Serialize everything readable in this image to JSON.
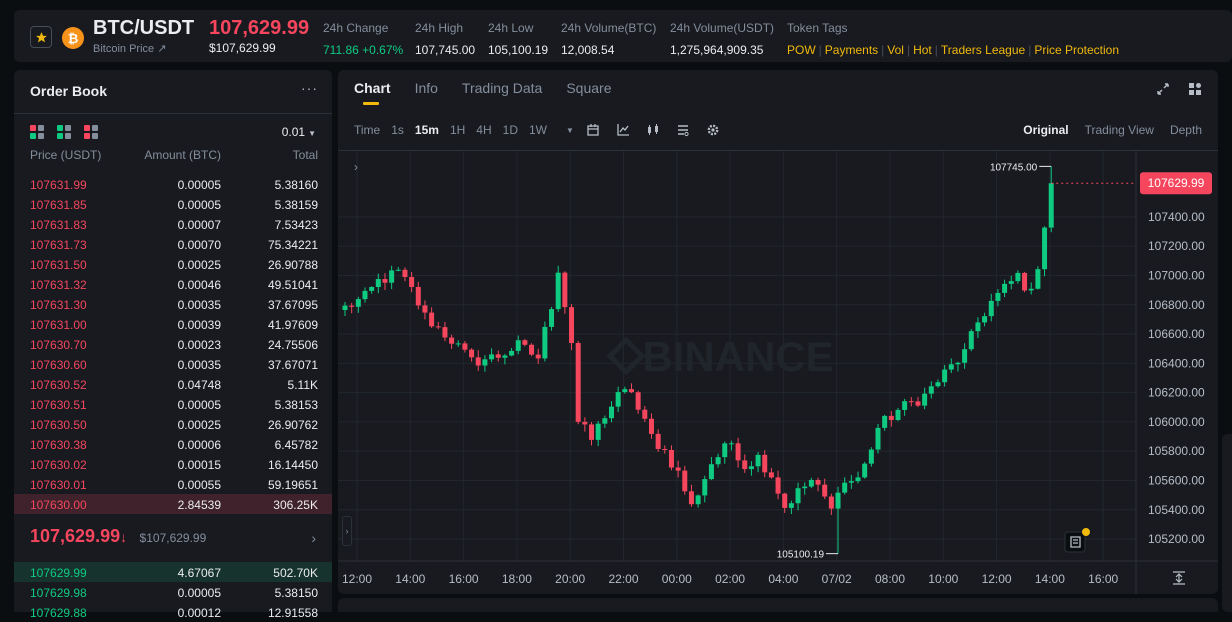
{
  "ticker": {
    "symbol": "BTC/USDT",
    "coin_symbol": "₿",
    "subtitle": "Bitcoin Price ↗",
    "last_price": "107,629.99",
    "last_price_usd": "$107,629.99",
    "stats": [
      {
        "label": "24h Change",
        "value": "711.86 +0.67%"
      },
      {
        "label": "24h High",
        "value": "107,745.00"
      },
      {
        "label": "24h Low",
        "value": "105,100.19"
      },
      {
        "label": "24h Volume(BTC)",
        "value": "12,008.54"
      },
      {
        "label": "24h Volume(USDT)",
        "value": "1,275,964,909.35"
      }
    ],
    "tags_label": "Token Tags",
    "tags": [
      "POW",
      "Payments",
      "Vol",
      "Hot",
      "Traders League",
      "Price Protection"
    ],
    "colors": {
      "up": "#0ecb81",
      "down": "#f6465d",
      "accent": "#f0b90b"
    }
  },
  "orderbook": {
    "title": "Order Book",
    "more": "···",
    "tick_size": "0.01",
    "headers": {
      "price": "Price (USDT)",
      "amount": "Amount (BTC)",
      "total": "Total"
    },
    "asks": [
      {
        "price": "107631.99",
        "amount": "0.00005",
        "total": "5.38160"
      },
      {
        "price": "107631.85",
        "amount": "0.00005",
        "total": "5.38159"
      },
      {
        "price": "107631.83",
        "amount": "0.00007",
        "total": "7.53423"
      },
      {
        "price": "107631.73",
        "amount": "0.00070",
        "total": "75.34221"
      },
      {
        "price": "107631.50",
        "amount": "0.00025",
        "total": "26.90788"
      },
      {
        "price": "107631.32",
        "amount": "0.00046",
        "total": "49.51041"
      },
      {
        "price": "107631.30",
        "amount": "0.00035",
        "total": "37.67095"
      },
      {
        "price": "107631.00",
        "amount": "0.00039",
        "total": "41.97609"
      },
      {
        "price": "107630.70",
        "amount": "0.00023",
        "total": "24.75506"
      },
      {
        "price": "107630.60",
        "amount": "0.00035",
        "total": "37.67071"
      },
      {
        "price": "107630.52",
        "amount": "0.04748",
        "total": "5.11K"
      },
      {
        "price": "107630.51",
        "amount": "0.00005",
        "total": "5.38153"
      },
      {
        "price": "107630.50",
        "amount": "0.00025",
        "total": "26.90762"
      },
      {
        "price": "107630.38",
        "amount": "0.00006",
        "total": "6.45782"
      },
      {
        "price": "107630.02",
        "amount": "0.00015",
        "total": "16.14450"
      },
      {
        "price": "107630.01",
        "amount": "0.00055",
        "total": "59.19651"
      },
      {
        "price": "107630.00",
        "amount": "2.84539",
        "total": "306.25K"
      }
    ],
    "mid_price": "107,629.99",
    "mid_arrow": "↓",
    "mid_usd": "$107,629.99",
    "mid_go": "›",
    "bids": [
      {
        "price": "107629.99",
        "amount": "4.67067",
        "total": "502.70K"
      },
      {
        "price": "107629.98",
        "amount": "0.00005",
        "total": "5.38150"
      },
      {
        "price": "107629.88",
        "amount": "0.00012",
        "total": "12.91558"
      }
    ]
  },
  "chart_panel": {
    "tabs": [
      "Chart",
      "Info",
      "Trading Data",
      "Square"
    ],
    "active_tab": "Chart",
    "timeframes": [
      "Time",
      "1s",
      "15m",
      "1H",
      "4H",
      "1D",
      "1W"
    ],
    "active_timeframe": "15m",
    "views": [
      "Original",
      "Trading View",
      "Depth"
    ],
    "active_view": "Original",
    "watermark": "BINANCE"
  },
  "chart_data": {
    "type": "candlestick",
    "title": "",
    "interval": "15m",
    "y_ticks": [
      105200,
      105400,
      105600,
      105800,
      106000,
      106200,
      106400,
      106600,
      106800,
      107000,
      107200,
      107400
    ],
    "ylim": [
      105050,
      107850
    ],
    "x_ticks": [
      "12:00",
      "14:00",
      "16:00",
      "18:00",
      "20:00",
      "22:00",
      "00:00",
      "02:00",
      "04:00",
      "07/02",
      "08:00",
      "10:00",
      "12:00",
      "14:00",
      "16:00"
    ],
    "last_price_label": "107629.99",
    "high_label": "107745.00",
    "low_label": "105100.19",
    "waypoints": [
      [
        0,
        106780
      ],
      [
        3,
        106850
      ],
      [
        5,
        106960
      ],
      [
        8,
        107020
      ],
      [
        10,
        106900
      ],
      [
        12,
        106720
      ],
      [
        14,
        106640
      ],
      [
        16,
        106560
      ],
      [
        19,
        106410
      ],
      [
        23,
        106450
      ],
      [
        26,
        106520
      ],
      [
        29,
        106440
      ],
      [
        31,
        106800
      ],
      [
        32,
        107050
      ],
      [
        34,
        106550
      ],
      [
        35,
        106000
      ],
      [
        37,
        105880
      ],
      [
        39,
        106050
      ],
      [
        41,
        106170
      ],
      [
        43,
        106220
      ],
      [
        44,
        106080
      ],
      [
        46,
        105900
      ],
      [
        48,
        105800
      ],
      [
        50,
        105650
      ],
      [
        52,
        105420
      ],
      [
        55,
        105720
      ],
      [
        58,
        105860
      ],
      [
        60,
        105700
      ],
      [
        62,
        105760
      ],
      [
        64,
        105640
      ],
      [
        66,
        105420
      ],
      [
        68,
        105520
      ],
      [
        70,
        105600
      ],
      [
        72,
        105480
      ],
      [
        73,
        105390
      ],
      [
        74,
        105560
      ],
      [
        77,
        105620
      ],
      [
        78,
        105700
      ],
      [
        80,
        105960
      ],
      [
        83,
        106080
      ],
      [
        87,
        106180
      ],
      [
        90,
        106330
      ],
      [
        93,
        106470
      ],
      [
        95,
        106680
      ],
      [
        97,
        106820
      ],
      [
        99,
        106910
      ],
      [
        101,
        107000
      ],
      [
        103,
        106870
      ],
      [
        104,
        107080
      ],
      [
        105,
        107350
      ],
      [
        106,
        107630
      ]
    ]
  }
}
